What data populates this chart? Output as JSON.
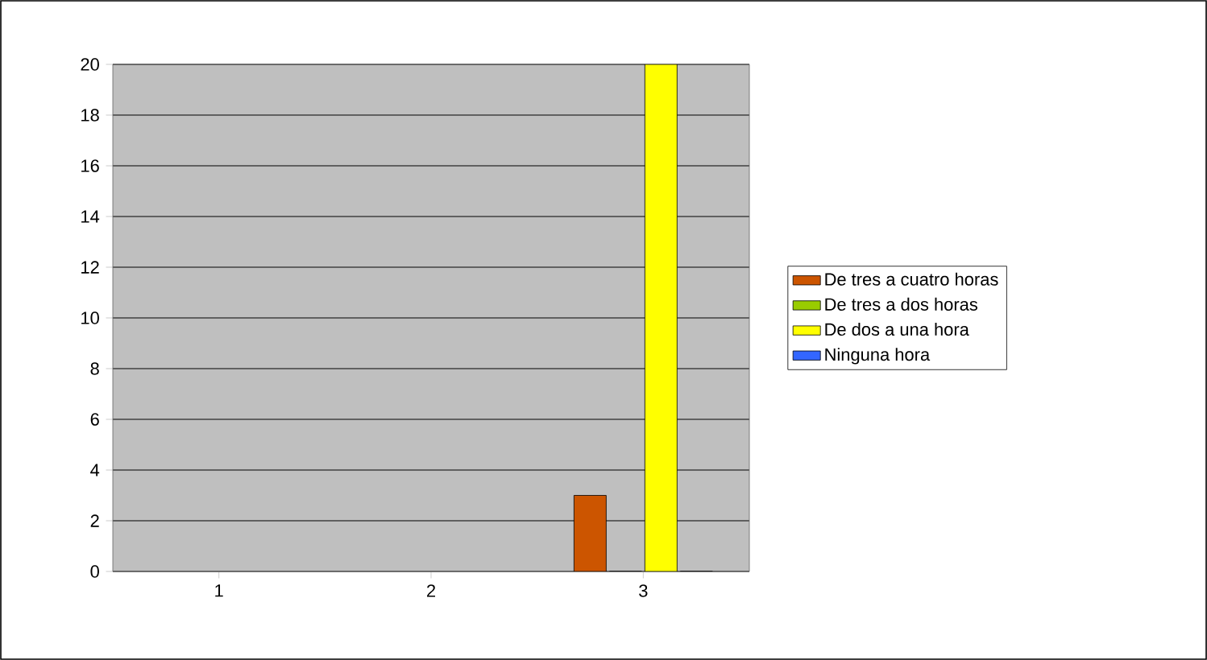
{
  "chart_data": {
    "type": "bar",
    "categories": [
      "1",
      "2",
      "3"
    ],
    "series": [
      {
        "name": "De tres a cuatro horas",
        "color": "#cc5500",
        "values": [
          null,
          null,
          3
        ]
      },
      {
        "name": "De tres a dos horas",
        "color": "#99cc00",
        "values": [
          null,
          null,
          0
        ]
      },
      {
        "name": "De dos a una hora",
        "color": "#ffff00",
        "values": [
          null,
          null,
          20
        ]
      },
      {
        "name": "Ninguna hora",
        "color": "#3366ff",
        "values": [
          null,
          null,
          0
        ]
      }
    ],
    "ylim": [
      0,
      20
    ],
    "yticks": [
      0,
      2,
      4,
      6,
      8,
      10,
      12,
      14,
      16,
      18,
      20
    ],
    "grid": "y",
    "legend": "right"
  }
}
